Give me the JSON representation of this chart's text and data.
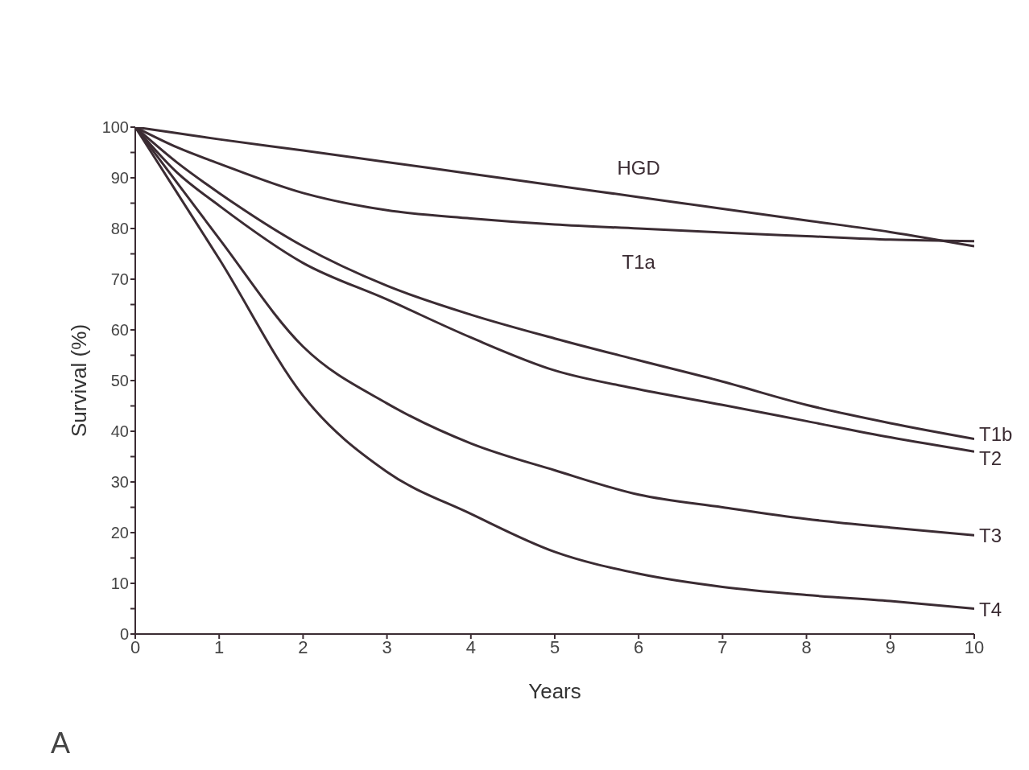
{
  "chart_data": {
    "type": "line",
    "xlabel": "Years",
    "ylabel": "Survival (%)",
    "x": [
      0,
      0.5,
      1,
      2,
      3,
      4,
      5,
      6,
      7,
      8,
      9,
      10
    ],
    "series": [
      {
        "name": "HGD",
        "color": "#3b2c33",
        "values": [
          100,
          98.8,
          97.6,
          95.4,
          93.1,
          90.8,
          88.5,
          86.2,
          83.9,
          81.6,
          79.3,
          76.5
        ]
      },
      {
        "name": "T1a",
        "color": "#3b2c33",
        "values": [
          100,
          96,
          92.8,
          87,
          83.6,
          82,
          80.8,
          80,
          79.2,
          78.5,
          77.8,
          77.5
        ]
      },
      {
        "name": "T1b",
        "color": "#3b2c33",
        "values": [
          100,
          93,
          87,
          76.5,
          68.7,
          63,
          58.3,
          54,
          49.8,
          45.2,
          41.6,
          38.5
        ]
      },
      {
        "name": "T2",
        "color": "#3b2c33",
        "values": [
          100,
          91,
          84.5,
          73.2,
          66,
          58.5,
          52,
          48.3,
          45.2,
          42,
          38.8,
          36
        ]
      },
      {
        "name": "T3",
        "color": "#3b2c33",
        "values": [
          100,
          89,
          78,
          56.7,
          45.5,
          37.6,
          32.3,
          27.5,
          25,
          22.7,
          21,
          19.5
        ]
      },
      {
        "name": "T4",
        "color": "#3b2c33",
        "values": [
          100,
          87,
          74,
          47,
          32,
          23.7,
          16.2,
          11.9,
          9.3,
          7.7,
          6.5,
          5
        ]
      }
    ],
    "xlim": [
      0,
      10
    ],
    "xticks": [
      0,
      1,
      2,
      3,
      4,
      5,
      6,
      7,
      8,
      9,
      10
    ],
    "ylim": [
      0,
      100
    ],
    "yticks": [
      0,
      {
        "value": 5,
        "label": null
      },
      10,
      {
        "value": 15,
        "label": null
      },
      20,
      {
        "value": 25,
        "label": null
      },
      30,
      {
        "value": 35,
        "label": null
      },
      40,
      {
        "value": 45,
        "label": null
      },
      50,
      {
        "value": 55,
        "label": null
      },
      60,
      {
        "value": 65,
        "label": null
      },
      70,
      {
        "value": 75,
        "label": null
      },
      80,
      {
        "value": 85,
        "label": null
      },
      90,
      {
        "value": 95,
        "label": null
      },
      100
    ],
    "grid": false,
    "legend": false,
    "marker": "none",
    "line_style": "solid",
    "annotations": [
      "A"
    ]
  }
}
